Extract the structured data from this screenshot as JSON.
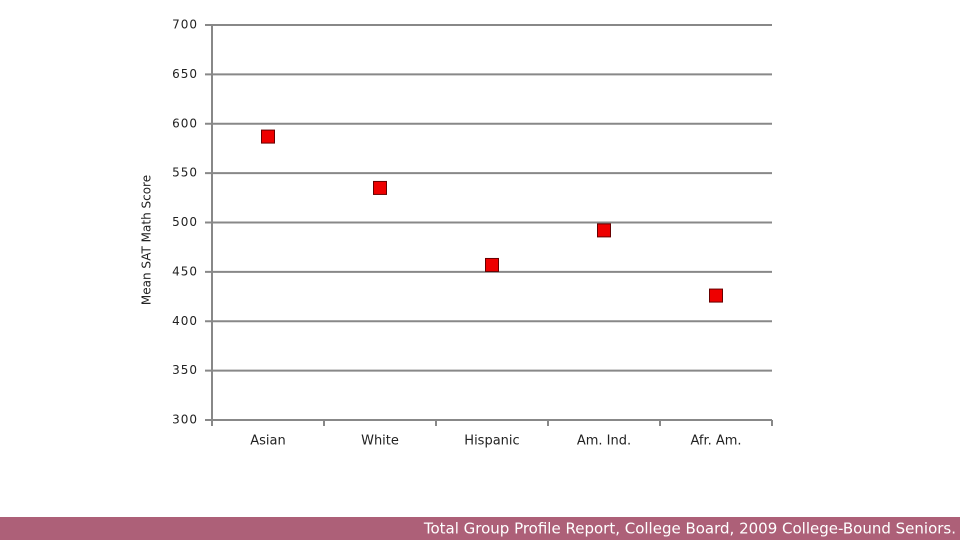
{
  "chart_data": {
    "type": "scatter",
    "y_label": "Mean SAT Math Score",
    "categories": [
      "Asian",
      "White",
      "Hispanic",
      "Am. Ind.",
      "Afr. Am."
    ],
    "values": [
      587,
      535,
      457,
      492,
      426
    ],
    "color": "#ee0000",
    "ylim": [
      300,
      700
    ],
    "yticks": [
      300,
      350,
      400,
      450,
      500,
      550,
      600,
      650,
      700
    ],
    "grid": true
  },
  "source": "Total Group Profile Report, College Board, 2009 College-Bound Seniors."
}
